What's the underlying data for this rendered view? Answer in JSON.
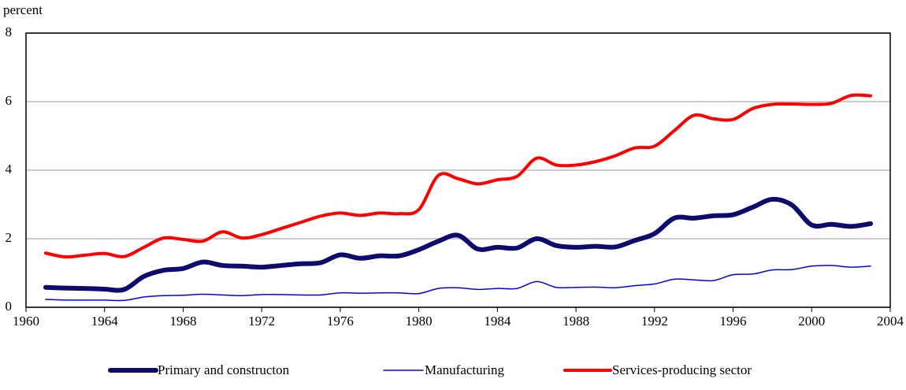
{
  "chart_data": {
    "type": "line",
    "y_label": "percent",
    "x": [
      1961,
      1962,
      1963,
      1964,
      1965,
      1966,
      1967,
      1968,
      1969,
      1970,
      1971,
      1972,
      1973,
      1974,
      1975,
      1976,
      1977,
      1978,
      1979,
      1980,
      1981,
      1982,
      1983,
      1984,
      1985,
      1986,
      1987,
      1988,
      1989,
      1990,
      1991,
      1992,
      1993,
      1994,
      1995,
      1996,
      1997,
      1998,
      1999,
      2000,
      2001,
      2002,
      2003
    ],
    "series": [
      {
        "name": "Primary and constructon",
        "color": "#0c0c6e",
        "values": [
          0.58,
          0.56,
          0.55,
          0.53,
          0.52,
          0.9,
          1.08,
          1.13,
          1.32,
          1.22,
          1.2,
          1.17,
          1.22,
          1.27,
          1.3,
          1.53,
          1.43,
          1.5,
          1.5,
          1.68,
          1.93,
          2.1,
          1.7,
          1.75,
          1.73,
          2.0,
          1.8,
          1.75,
          1.78,
          1.76,
          1.95,
          2.15,
          2.6,
          2.6,
          2.67,
          2.7,
          2.92,
          3.15,
          2.98,
          2.4,
          2.42,
          2.36,
          2.44
        ]
      },
      {
        "name": "Manufacturing",
        "color": "#0000ff",
        "values": [
          0.23,
          0.21,
          0.21,
          0.21,
          0.2,
          0.3,
          0.34,
          0.35,
          0.38,
          0.36,
          0.34,
          0.37,
          0.37,
          0.36,
          0.36,
          0.42,
          0.41,
          0.42,
          0.42,
          0.4,
          0.55,
          0.57,
          0.52,
          0.55,
          0.55,
          0.75,
          0.58,
          0.58,
          0.59,
          0.57,
          0.63,
          0.68,
          0.82,
          0.8,
          0.78,
          0.95,
          0.97,
          1.09,
          1.1,
          1.2,
          1.22,
          1.17,
          1.2
        ]
      },
      {
        "name": "Services-producing sector",
        "color": "#ff0000",
        "values": [
          1.58,
          1.47,
          1.52,
          1.57,
          1.48,
          1.75,
          2.02,
          1.98,
          1.93,
          2.2,
          2.02,
          2.12,
          2.3,
          2.48,
          2.66,
          2.75,
          2.68,
          2.75,
          2.73,
          2.85,
          3.85,
          3.75,
          3.6,
          3.72,
          3.82,
          4.35,
          4.15,
          4.15,
          4.25,
          4.42,
          4.65,
          4.7,
          5.15,
          5.6,
          5.5,
          5.48,
          5.8,
          5.92,
          5.93,
          5.92,
          5.95,
          6.18,
          6.17
        ]
      }
    ],
    "xlim": [
      1960,
      2004
    ],
    "xticks": [
      1960,
      1964,
      1968,
      1972,
      1976,
      1980,
      1984,
      1988,
      1992,
      1996,
      2000,
      2004
    ],
    "ylim": [
      0,
      8
    ],
    "yticks": [
      0,
      2,
      4,
      6,
      8
    ],
    "grid": true
  }
}
